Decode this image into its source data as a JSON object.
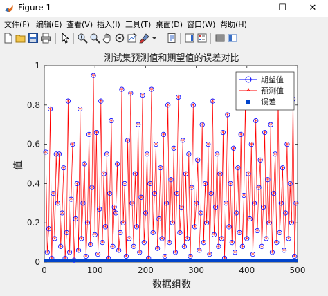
{
  "window": {
    "title": "Figure 1",
    "controls": {
      "minimize": "—",
      "maximize": "☐",
      "close": "✕"
    }
  },
  "menu": [
    "文件(F)",
    "编辑(E)",
    "查看(V)",
    "插入(I)",
    "工具(T)",
    "桌面(D)",
    "窗口(W)",
    "帮助(H)"
  ],
  "toolbar": {
    "icons": [
      "new-figure-icon",
      "open-file-icon",
      "save-icon",
      "print-icon",
      "edit-plot-arrow-icon",
      "zoom-in-icon",
      "zoom-out-icon",
      "pan-hand-icon",
      "rotate-3d-icon",
      "data-cursor-icon",
      "brush-icon",
      "brush-dropdown-icon",
      "link-plot-icon",
      "insert-colorbar-icon",
      "insert-legend-icon",
      "hide-plot-tools-icon",
      "show-plot-tools-icon"
    ]
  },
  "colors": {
    "expected": "#0000ff",
    "predicted": "#ff0000",
    "error": "#0044cc",
    "axes_bg": "#ffffff",
    "figure_bg": "#f0f0f0"
  },
  "chart_data": {
    "type": "line",
    "title": "测试集预测值和期望值的误差对比",
    "xlabel": "数据组数",
    "ylabel": "值",
    "xlim": [
      0,
      500
    ],
    "ylim": [
      0,
      1
    ],
    "xticks": [
      0,
      100,
      200,
      300,
      400,
      500
    ],
    "yticks": [
      0,
      0.2,
      0.4,
      0.6,
      0.8,
      1
    ],
    "grid": false,
    "legend_position": "top-right",
    "series": [
      {
        "name": "期望值",
        "marker": "circle",
        "color": "#0000ff",
        "values": [
          0.56,
          0.05,
          0.17,
          0.78,
          0.02,
          0.35,
          0.12,
          0.55,
          0.3,
          0.55,
          0.08,
          0.25,
          0.48,
          0.02,
          0.15,
          0.82,
          0.05,
          0.32,
          0.6,
          0.01,
          0.22,
          0.4,
          0.06,
          0.78,
          0.12,
          0.3,
          0.5,
          0.03,
          0.2,
          0.65,
          0.09,
          0.38,
          0.95,
          0.14,
          0.66,
          0.04,
          0.27,
          0.82,
          0.1,
          0.45,
          0.18,
          0.55,
          0.02,
          0.35,
          0.72,
          0.08,
          0.28,
          0.25,
          0.5,
          0.06,
          0.15,
          0.88,
          0.2,
          0.4,
          0.03,
          0.62,
          0.12,
          0.86,
          0.3,
          0.08,
          0.45,
          0.18,
          0.7,
          0.05,
          0.33,
          0.85,
          0.1,
          0.25,
          0.55,
          0.02,
          0.4,
          0.88,
          0.15,
          0.35,
          0.6,
          0.07,
          0.22,
          0.48,
          0.12,
          0.65,
          0.03,
          0.3,
          0.8,
          0.1,
          0.42,
          0.2,
          0.58,
          0.05,
          0.35,
          0.84,
          0.15,
          0.28,
          0.62,
          0.08,
          0.45,
          0.12,
          0.55,
          0.03,
          0.38,
          0.8,
          0.18,
          0.3,
          0.52,
          0.06,
          0.25,
          0.7,
          0.1,
          0.4,
          0.2,
          0.6,
          0.04,
          0.35,
          0.82,
          0.14,
          0.28,
          0.55,
          0.08,
          0.45,
          0.12,
          0.66,
          0.02,
          0.3,
          0.75,
          0.18,
          0.4,
          0.1,
          0.58,
          0.05,
          0.25,
          0.48,
          0.15,
          0.65,
          0.08,
          0.34,
          0.82,
          0.12,
          0.45,
          0.22,
          0.6,
          0.04,
          0.3,
          0.72,
          0.16,
          0.38,
          0.52,
          0.08,
          0.28,
          0.66,
          0.12,
          0.42,
          0.2,
          0.7,
          0.05,
          0.35,
          0.55,
          0.1,
          0.84,
          0.15,
          0.3,
          0.48,
          0.06,
          0.25,
          0.6,
          0.12,
          0.4,
          0.2,
          0.83,
          0.03,
          0.3
        ],
        "note_count": 169
      },
      {
        "name": "预测值",
        "marker": "star",
        "color": "#ff0000"
      },
      {
        "name": "误差",
        "marker": "square",
        "color": "#0044cc"
      }
    ]
  },
  "axis_labels": {
    "x_ticks": [
      "0",
      "100",
      "200",
      "300",
      "400",
      "500"
    ],
    "y_ticks": [
      "0",
      "0.2",
      "0.4",
      "0.6",
      "0.8",
      "1"
    ]
  }
}
